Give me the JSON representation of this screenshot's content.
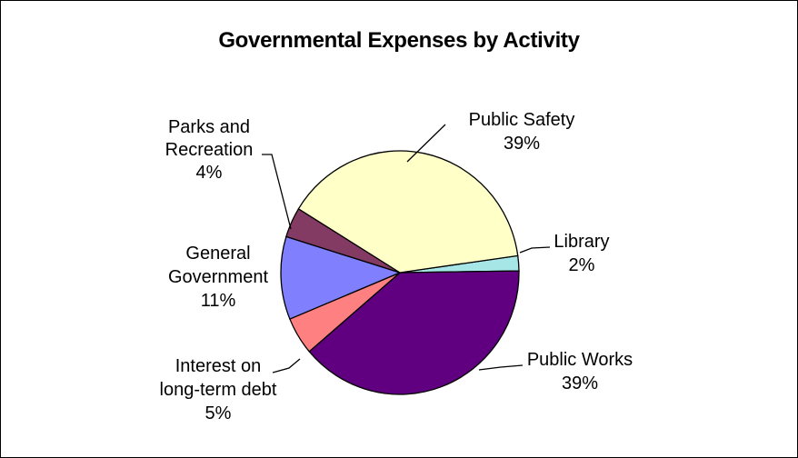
{
  "chart_data": {
    "type": "pie",
    "title": "Governmental Expenses by Activity",
    "slices": [
      {
        "name": "Library",
        "value": 2,
        "label": "2%",
        "color": "#a6e6e6"
      },
      {
        "name": "Public Works",
        "value": 39,
        "label": "39%",
        "color": "#600080"
      },
      {
        "name": "Interest on long-term debt",
        "value": 5,
        "label": "5%",
        "color": "#ff8080"
      },
      {
        "name": "General Government",
        "value": 11,
        "label": "11%",
        "color": "#8080ff"
      },
      {
        "name": "Parks and Recreation",
        "value": 4,
        "label": "4%",
        "color": "#833a63"
      },
      {
        "name": "Public Safety",
        "value": 39,
        "label": "39%",
        "color": "#ffffc8"
      }
    ],
    "labels": [
      {
        "lines": [
          "Public Safety",
          "39%"
        ]
      },
      {
        "lines": [
          "Library",
          "2%"
        ]
      },
      {
        "lines": [
          "Public Works",
          "39%"
        ]
      },
      {
        "lines": [
          "Interest on",
          "long-term debt",
          "5%"
        ]
      },
      {
        "lines": [
          "General",
          "Government",
          "11%"
        ]
      },
      {
        "lines": [
          "Parks and",
          "Recreation",
          "4%"
        ]
      }
    ]
  }
}
